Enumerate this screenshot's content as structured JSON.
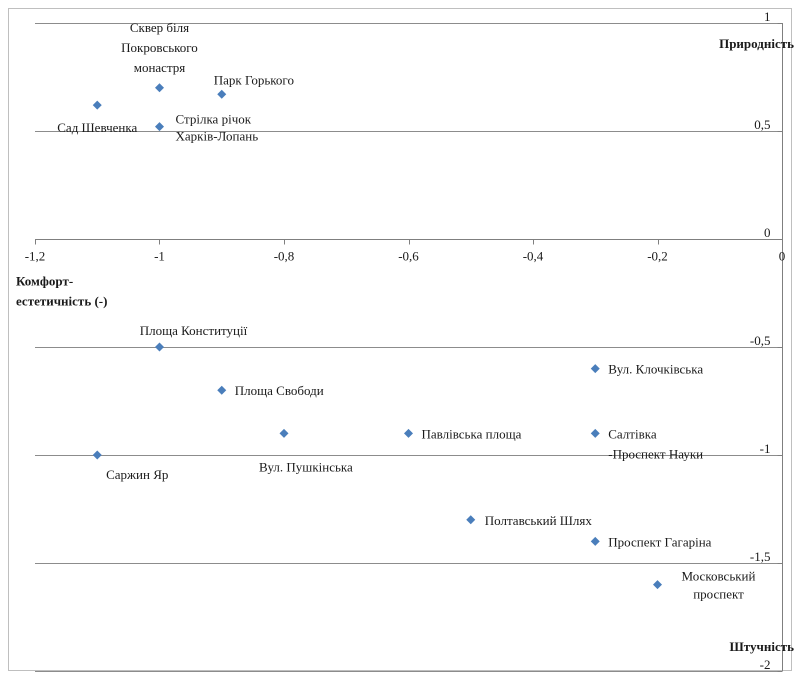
{
  "chart_data": {
    "type": "scatter",
    "xlim": [
      -1.2,
      0
    ],
    "ylim": [
      -2,
      1
    ],
    "xticks": [
      "-1,2",
      "-1",
      "-0,8",
      "-0,6",
      "-0,4",
      "-0,2",
      "0"
    ],
    "xtick_values": [
      -1.2,
      -1,
      -0.8,
      -0.6,
      -0.4,
      -0.2,
      0
    ],
    "yticks": [
      "1",
      "0,5",
      "0",
      "-0,5",
      "-1",
      "-1,5",
      "-2"
    ],
    "ytick_values": [
      1,
      0.5,
      0,
      -0.5,
      -1,
      -1.5,
      -2
    ],
    "y_top_label": "Природність",
    "y_bottom_label": "Штучність",
    "x_label_lines": [
      "Комфорт-",
      "естетичність (-)"
    ],
    "grid": true,
    "marker_color": "#4a7ebb",
    "gridline_color": "#8c8c8c",
    "points": [
      {
        "label_lines": [
          "Сквер біля",
          "Покровського",
          "монастря"
        ],
        "x": -1.0,
        "y": 0.7
      },
      {
        "label_lines": [
          "Парк Горького"
        ],
        "x": -0.9,
        "y": 0.67
      },
      {
        "label_lines": [
          "Сад Шевченка"
        ],
        "x": -1.1,
        "y": 0.62
      },
      {
        "label_lines": [
          "Стрілка річок",
          "Харків-Лопань"
        ],
        "x": -1.0,
        "y": 0.52
      },
      {
        "label_lines": [
          "Площа Конституції"
        ],
        "x": -1.0,
        "y": -0.5
      },
      {
        "label_lines": [
          "Вул. Клочківська"
        ],
        "x": -0.3,
        "y": -0.6
      },
      {
        "label_lines": [
          "Площа Свободи"
        ],
        "x": -0.9,
        "y": -0.7
      },
      {
        "label_lines": [
          "Вул. Пушкінська"
        ],
        "x": -0.8,
        "y": -0.9
      },
      {
        "label_lines": [
          "Павлівська площа"
        ],
        "x": -0.6,
        "y": -0.9
      },
      {
        "label_lines": [
          "Салтівка",
          "-Проспект Науки"
        ],
        "x": -0.3,
        "y": -0.9
      },
      {
        "label_lines": [
          "Саржин Яр"
        ],
        "x": -1.1,
        "y": -1.0
      },
      {
        "label_lines": [
          "Полтавський Шлях"
        ],
        "x": -0.5,
        "y": -1.3
      },
      {
        "label_lines": [
          "Проспект Гагаріна"
        ],
        "x": -0.3,
        "y": -1.4
      },
      {
        "label_lines": [
          "Московський",
          "проспект"
        ],
        "x": -0.2,
        "y": -1.6
      }
    ]
  }
}
